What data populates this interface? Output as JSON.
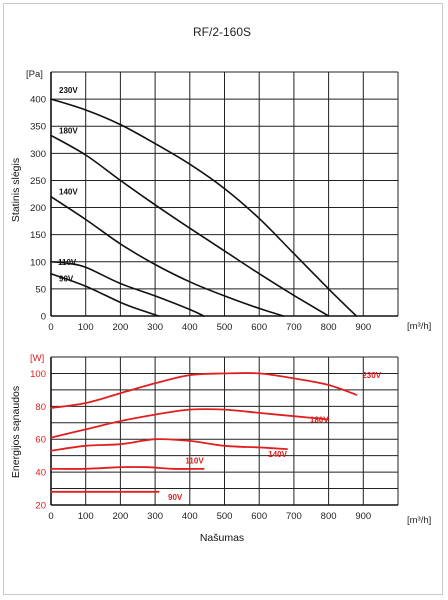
{
  "chart_data": [
    {
      "type": "line",
      "title": "RF/2-160S",
      "unit_y": "[Pa]",
      "unit_x": "[m³/h]",
      "ylabel": "Statinis slėgis",
      "xlabel": "",
      "xlim": [
        0,
        1000
      ],
      "ylim": [
        0,
        450
      ],
      "x_ticks": [
        0,
        100,
        200,
        300,
        400,
        500,
        600,
        700,
        800,
        900
      ],
      "y_ticks": [
        0,
        50,
        100,
        150,
        200,
        250,
        300,
        350,
        400
      ],
      "grid": true,
      "series_color": "#111111",
      "series": [
        {
          "name": "230V",
          "x": [
            0,
            100,
            200,
            300,
            400,
            500,
            600,
            700,
            800,
            880
          ],
          "y": [
            400,
            380,
            353,
            318,
            280,
            235,
            180,
            115,
            50,
            0
          ]
        },
        {
          "name": "180V",
          "x": [
            0,
            100,
            200,
            300,
            400,
            500,
            600,
            700,
            800
          ],
          "y": [
            333,
            297,
            250,
            205,
            162,
            120,
            78,
            38,
            0
          ]
        },
        {
          "name": "140V",
          "x": [
            0,
            100,
            200,
            300,
            400,
            500,
            600,
            670
          ],
          "y": [
            220,
            178,
            133,
            95,
            63,
            37,
            14,
            0
          ]
        },
        {
          "name": "110V",
          "x": [
            0,
            50,
            100,
            200,
            300,
            400,
            440
          ],
          "y": [
            100,
            97,
            90,
            60,
            37,
            12,
            0
          ]
        },
        {
          "name": "90V",
          "x": [
            0,
            100,
            200,
            250,
            310
          ],
          "y": [
            78,
            55,
            25,
            13,
            0
          ]
        }
      ]
    },
    {
      "type": "line",
      "unit_y": "[W]",
      "unit_x": "[m³/h]",
      "ylabel": "Energijos sąnaudos",
      "xlabel": "Našumas",
      "xlim": [
        0,
        1000
      ],
      "ylim": [
        20,
        110
      ],
      "x_ticks": [
        0,
        100,
        200,
        300,
        400,
        500,
        600,
        700,
        800,
        900
      ],
      "y_ticks": [
        20,
        40,
        60,
        80,
        100
      ],
      "grid": true,
      "series_color": "#e02020",
      "series": [
        {
          "name": "230V",
          "x": [
            0,
            100,
            200,
            300,
            400,
            500,
            600,
            700,
            800,
            880
          ],
          "y": [
            79,
            82,
            88,
            94,
            99,
            100,
            100,
            97,
            93,
            87
          ]
        },
        {
          "name": "180V",
          "x": [
            0,
            100,
            200,
            300,
            400,
            500,
            600,
            700,
            800
          ],
          "y": [
            61,
            66,
            71,
            75,
            78,
            78,
            76,
            74,
            72
          ]
        },
        {
          "name": "140V",
          "x": [
            0,
            100,
            200,
            300,
            400,
            500,
            600,
            680
          ],
          "y": [
            53,
            56,
            57,
            60,
            59,
            56,
            55,
            54
          ]
        },
        {
          "name": "110V",
          "x": [
            0,
            100,
            200,
            280,
            350,
            440
          ],
          "y": [
            42,
            42,
            43,
            43,
            42,
            42
          ]
        },
        {
          "name": "90V",
          "x": [
            0,
            100,
            200,
            310
          ],
          "y": [
            28,
            28,
            28,
            28
          ]
        }
      ]
    }
  ]
}
